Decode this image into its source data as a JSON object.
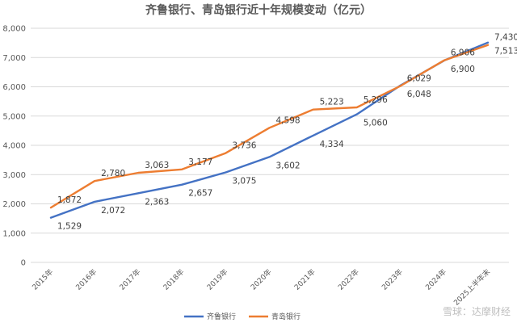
{
  "chart_data": {
    "type": "line",
    "title": "齐鲁银行、青岛银行近十年规模变动（亿元）",
    "categories": [
      "2015年",
      "2016年",
      "2017年",
      "2018年",
      "2019年",
      "2020年",
      "2021年",
      "2022年",
      "2023年",
      "2024年",
      "2025上半年末"
    ],
    "ylim": [
      0,
      8000
    ],
    "yticks": [
      "0",
      "1,000",
      "2,000",
      "3,000",
      "4,000",
      "5,000",
      "6,000",
      "7,000",
      "8,000"
    ],
    "grid": true,
    "legend_position": "bottom",
    "series": [
      {
        "name": "齐鲁银行",
        "color": "#4472C4",
        "values": [
          1529,
          2072,
          2363,
          2657,
          3075,
          3602,
          4334,
          5060,
          6048,
          6900,
          7513
        ],
        "labels": [
          "1,529",
          "2,072",
          "2,363",
          "2,657",
          "3,075",
          "3,602",
          "4,334",
          "5,060",
          "6,048",
          "6,900",
          "7,513"
        ]
      },
      {
        "name": "青岛银行",
        "color": "#ED7D31",
        "values": [
          1872,
          2780,
          3063,
          3177,
          3736,
          4598,
          5223,
          5296,
          6029,
          6906,
          7430
        ],
        "labels": [
          "1,872",
          "2,780",
          "3,063",
          "3,177",
          "3,736",
          "4,598",
          "5,223",
          "5,296",
          "6,029",
          "6,906",
          "7,430"
        ]
      }
    ]
  },
  "watermark": "雪球：达摩财经"
}
